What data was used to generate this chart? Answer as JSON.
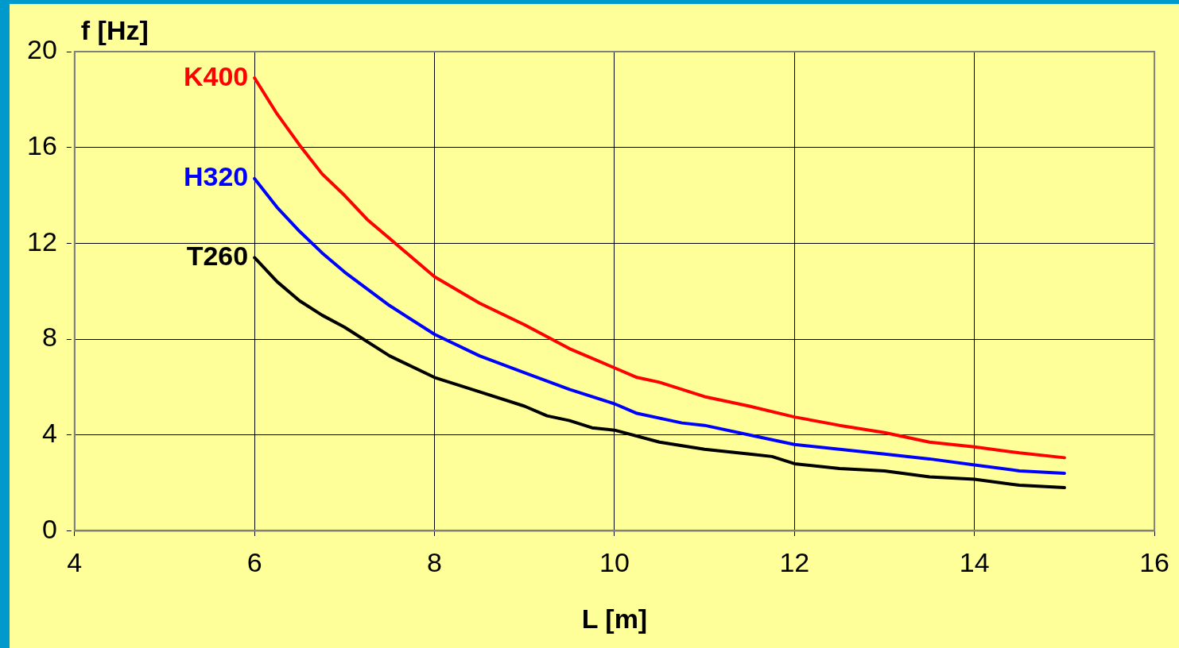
{
  "chart_data": {
    "type": "line",
    "xlabel": "L [m]",
    "ylabel": "f [Hz]",
    "xlim": [
      4,
      16
    ],
    "xticks": [
      4,
      6,
      8,
      10,
      12,
      14,
      16
    ],
    "ylim": [
      0,
      20
    ],
    "yticks": [
      0,
      4,
      8,
      12,
      16,
      20
    ],
    "grid": true,
    "line_style": "solid",
    "marker": "none",
    "legend": false,
    "series": [
      {
        "name": "K400",
        "color": "#ff0000",
        "x": [
          6,
          6.25,
          6.5,
          6.75,
          7,
          7.25,
          7.5,
          8,
          8.5,
          9,
          9.5,
          10,
          10.25,
          10.5,
          11,
          11.5,
          12,
          12.5,
          13,
          13.5,
          14,
          14.5,
          15
        ],
        "values": [
          18.9,
          17.4,
          16.1,
          14.9,
          14.0,
          13.0,
          12.2,
          10.6,
          9.5,
          8.6,
          7.6,
          6.8,
          6.4,
          6.2,
          5.6,
          5.2,
          4.75,
          4.4,
          4.1,
          3.7,
          3.5,
          3.25,
          3.05
        ]
      },
      {
        "name": "H320",
        "color": "#0000ff",
        "x": [
          6,
          6.25,
          6.5,
          6.75,
          7,
          7.5,
          8,
          8.5,
          9,
          9.5,
          10,
          10.25,
          10.75,
          11,
          11.5,
          12,
          12.5,
          13,
          13.5,
          14,
          14.5,
          15
        ],
        "values": [
          14.7,
          13.5,
          12.5,
          11.6,
          10.8,
          9.4,
          8.2,
          7.3,
          6.6,
          5.9,
          5.3,
          4.9,
          4.5,
          4.4,
          4.0,
          3.6,
          3.4,
          3.2,
          3.0,
          2.75,
          2.5,
          2.4
        ]
      },
      {
        "name": "T260",
        "color": "#000000",
        "x": [
          6,
          6.25,
          6.5,
          6.75,
          7,
          7.5,
          8,
          8.5,
          9,
          9.25,
          9.5,
          9.75,
          10,
          10.5,
          11,
          11.5,
          11.75,
          12,
          12.5,
          13,
          13.5,
          14,
          14.5,
          15
        ],
        "values": [
          11.4,
          10.4,
          9.6,
          9.0,
          8.5,
          7.3,
          6.4,
          5.8,
          5.2,
          4.8,
          4.6,
          4.3,
          4.2,
          3.7,
          3.4,
          3.2,
          3.1,
          2.8,
          2.6,
          2.5,
          2.25,
          2.15,
          1.9,
          1.8
        ]
      }
    ]
  }
}
